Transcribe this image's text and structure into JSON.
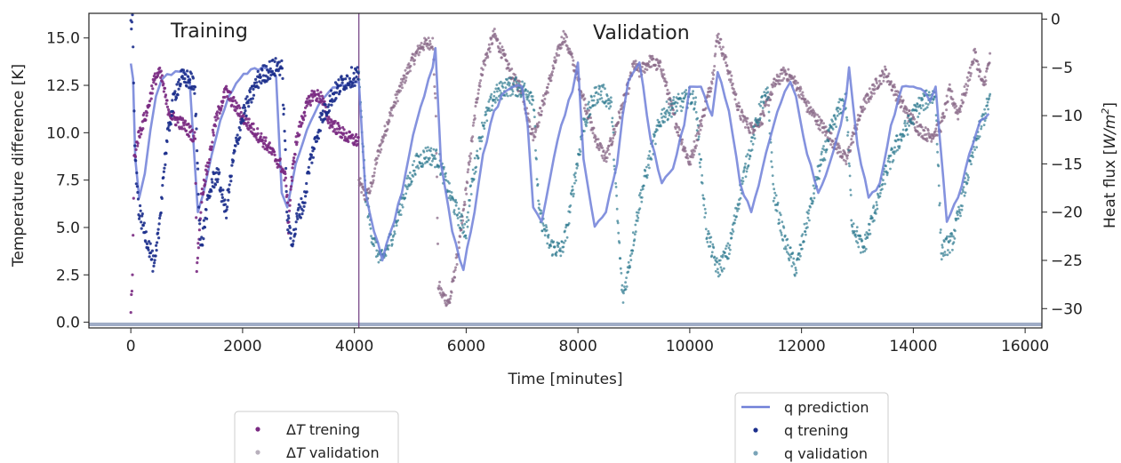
{
  "chart_data": {
    "type": "scatter",
    "xlabel": "Time [minutes]",
    "ylabel_left": "Temperature difference [K]",
    "ylabel_right_parts": [
      "Heat flux [",
      "W/m",
      "2",
      "]"
    ],
    "xlim": [
      -750,
      16300
    ],
    "ylim_left": [
      -0.3,
      16.3
    ],
    "ylim_right": [
      -32.0,
      0.6
    ],
    "xticks": [
      0,
      2000,
      4000,
      6000,
      8000,
      10000,
      12000,
      14000,
      16000
    ],
    "yticks_left": [
      "0.0",
      "2.5",
      "5.0",
      "7.5",
      "10.0",
      "12.5",
      "15.0"
    ],
    "yticks_right": [
      "0",
      "−5",
      "−10",
      "−15",
      "−20",
      "−25",
      "−30"
    ],
    "split_x": 4080,
    "region_labels": {
      "training": "Training",
      "validation": "Validation"
    },
    "colors": {
      "dt_train": "#7a2a82",
      "dt_val": "#8a6a88",
      "q_pred": "#6f7fd8",
      "q_train": "#1c2f8c",
      "q_val": "#2f7a90",
      "split_line": "#7a4a8a"
    },
    "legend_left": [
      {
        "label_prefix": "Δ",
        "label_italic": "T",
        "label_suffix": " trening",
        "marker": "dot",
        "color": "#7a2a82"
      },
      {
        "label_prefix": "Δ",
        "label_italic": "T",
        "label_suffix": " validation",
        "marker": "dot",
        "color": "#b8b0bc"
      }
    ],
    "legend_right": [
      {
        "label": "q prediction",
        "marker": "line",
        "color": "#7080d8"
      },
      {
        "label": "q trening",
        "marker": "dot",
        "color": "#1c2f8c"
      },
      {
        "label": "q validation",
        "marker": "dot",
        "color": "#7aa4b8"
      }
    ],
    "series": [
      {
        "name": "ΔT trening",
        "axis": "left",
        "x": [
          0,
          30,
          60,
          120,
          200,
          300,
          400,
          500,
          560,
          650,
          750,
          850,
          950,
          1050,
          1150,
          1180,
          1220,
          1260,
          1300,
          1400,
          1500,
          1600,
          1700,
          1850,
          2000,
          2150,
          2300,
          2450,
          2600,
          2700,
          2780,
          2820,
          2860,
          2950,
          3100,
          3250,
          3400,
          3550,
          3700,
          3850,
          4000,
          4080
        ],
        "y": [
          0.8,
          2.4,
          8.6,
          9.6,
          10.4,
          11.2,
          12.6,
          13.2,
          12.8,
          11.4,
          10.8,
          10.6,
          10.4,
          10.1,
          9.7,
          3.0,
          4.5,
          6.5,
          7.2,
          8.6,
          10.4,
          11.4,
          12.2,
          11.5,
          10.8,
          10.3,
          9.8,
          9.3,
          8.6,
          8.2,
          7.4,
          5.0,
          7.0,
          9.4,
          11.1,
          12.0,
          11.9,
          10.6,
          10.2,
          9.8,
          9.6,
          9.6
        ]
      },
      {
        "name": "ΔT validation",
        "axis": "left",
        "x": [
          4080,
          4200,
          4300,
          4400,
          4600,
          4800,
          5000,
          5200,
          5400,
          5460,
          5500,
          5560,
          5700,
          5900,
          6100,
          6200,
          6300,
          6500,
          6700,
          6850,
          7000,
          7100,
          7200,
          7400,
          7600,
          7750,
          7900,
          8100,
          8300,
          8500,
          8700,
          8900,
          9000,
          9100,
          9300,
          9500,
          9700,
          9900,
          10000,
          10200,
          10400,
          10500,
          10700,
          10900,
          11100,
          11300,
          11500,
          11700,
          11900,
          12100,
          12300,
          12500,
          12700,
          12800,
          12900,
          13100,
          13300,
          13500,
          13700,
          13900,
          14100,
          14300,
          14500,
          14650,
          14800,
          14950,
          15100,
          15250,
          15380
        ],
        "y": [
          7.4,
          6.6,
          7.1,
          8.6,
          10.6,
          12.2,
          13.6,
          14.6,
          14.8,
          11.0,
          2.0,
          1.5,
          1.0,
          4.5,
          9.5,
          12.0,
          13.5,
          15.2,
          13.8,
          12.8,
          12.3,
          10.8,
          9.8,
          11.8,
          13.8,
          15.2,
          13.8,
          11.8,
          9.8,
          8.6,
          10.5,
          12.4,
          13.6,
          13.2,
          13.8,
          13.4,
          11.0,
          9.2,
          8.4,
          10.5,
          12.8,
          15.2,
          13.2,
          11.0,
          10.2,
          10.8,
          12.5,
          13.2,
          12.6,
          11.4,
          10.6,
          9.8,
          9.0,
          8.5,
          9.6,
          11.4,
          12.4,
          13.2,
          12.0,
          11.0,
          10.2,
          9.8,
          10.4,
          12.2,
          11.0,
          12.4,
          14.2,
          12.4,
          14.0
        ]
      },
      {
        "name": "q prediction",
        "axis": "right",
        "x": [
          0,
          40,
          80,
          150,
          250,
          350,
          450,
          550,
          650,
          800,
          950,
          1050,
          1150,
          1200,
          1300,
          1450,
          1600,
          1750,
          1950,
          2150,
          2350,
          2500,
          2600,
          2700,
          2800,
          2950,
          3150,
          3350,
          3550,
          3750,
          3950,
          4080,
          4200,
          4350,
          4500,
          4650,
          4850,
          5050,
          5250,
          5400,
          5450,
          5550,
          5750,
          5950,
          6150,
          6300,
          6500,
          6700,
          6850,
          7000,
          7100,
          7200,
          7350,
          7500,
          7700,
          7900,
          8000,
          8100,
          8300,
          8500,
          8700,
          8800,
          8900,
          9100,
          9300,
          9500,
          9700,
          9900,
          10000,
          10200,
          10400,
          10500,
          10700,
          10900,
          11100,
          11300,
          11500,
          11700,
          11800,
          11900,
          12100,
          12300,
          12500,
          12700,
          12800,
          12850,
          13000,
          13200,
          13400,
          13600,
          13800,
          14000,
          14200,
          14300,
          14400,
          14600,
          14800,
          15000,
          15200,
          15350
        ],
        "y": [
          -4.6,
          -6.2,
          -14.5,
          -18.5,
          -16.0,
          -11.5,
          -8.0,
          -6.3,
          -5.7,
          -5.4,
          -5.4,
          -6.2,
          -15.5,
          -20.0,
          -18.0,
          -14.0,
          -10.5,
          -8.0,
          -6.2,
          -5.2,
          -5.0,
          -5.4,
          -6.0,
          -18.0,
          -19.5,
          -15.0,
          -11.5,
          -9.0,
          -7.5,
          -6.8,
          -6.5,
          -6.5,
          -18.0,
          -22.0,
          -25.0,
          -22.0,
          -18.0,
          -12.0,
          -8.0,
          -5.0,
          -3.0,
          -15.0,
          -22.0,
          -26.0,
          -20.0,
          -14.0,
          -9.5,
          -7.5,
          -7.0,
          -7.0,
          -11.0,
          -19.5,
          -21.0,
          -16.5,
          -11.0,
          -7.5,
          -4.5,
          -14.5,
          -21.5,
          -20.0,
          -15.0,
          -10.0,
          -6.5,
          -4.5,
          -12.5,
          -17.0,
          -15.5,
          -11.0,
          -7.0,
          -7.0,
          -10.0,
          -5.5,
          -9.5,
          -17.0,
          -20.0,
          -15.5,
          -11.0,
          -7.5,
          -6.5,
          -8.0,
          -14.0,
          -18.0,
          -15.0,
          -11.0,
          -8.0,
          -5.0,
          -13.0,
          -18.5,
          -17.0,
          -11.0,
          -7.0,
          -7.0,
          -7.5,
          -8.5,
          -7.0,
          -21.0,
          -18.5,
          -14.0,
          -10.5,
          -9.8
        ]
      },
      {
        "name": "q trening",
        "axis": "right",
        "x": [
          0,
          30,
          50,
          80,
          150,
          250,
          350,
          420,
          500,
          600,
          700,
          800,
          900,
          1000,
          1100,
          1150,
          1250,
          1350,
          1450,
          1550,
          1700,
          1850,
          2000,
          2150,
          2300,
          2400,
          2500,
          2600,
          2650,
          2700,
          2750,
          2800,
          2900,
          3000,
          3100,
          3200,
          3400,
          3600,
          3800,
          3950,
          4080
        ],
        "y": [
          -0.3,
          -0.5,
          -7.0,
          -15.0,
          -20.0,
          -22.0,
          -24.0,
          -26.0,
          -22.0,
          -15.0,
          -10.5,
          -7.5,
          -6.2,
          -6.2,
          -6.5,
          -7.8,
          -24.0,
          -20.0,
          -17.0,
          -16.0,
          -20.0,
          -14.0,
          -10.0,
          -8.0,
          -6.0,
          -5.6,
          -5.2,
          -5.0,
          -4.8,
          -5.0,
          -11.0,
          -21.0,
          -23.0,
          -20.0,
          -19.0,
          -15.0,
          -10.5,
          -8.0,
          -6.5,
          -6.0,
          -5.8
        ]
      },
      {
        "name": "q validation",
        "axis": "right",
        "x": [
          4080,
          4200,
          4300,
          4400,
          4500,
          4700,
          4900,
          5100,
          5300,
          5500,
          5700,
          5900,
          6000,
          6100,
          6300,
          6500,
          6700,
          6900,
          7100,
          7200,
          7300,
          7500,
          7700,
          7800,
          7900,
          8100,
          8300,
          8400,
          8500,
          8600,
          8700,
          8800,
          8900,
          9100,
          9300,
          9500,
          9700,
          9900,
          10000,
          10100,
          10300,
          10500,
          10700,
          10900,
          11100,
          11300,
          11400,
          11500,
          11700,
          11900,
          12100,
          12300,
          12500,
          12700,
          12800,
          12900,
          13100,
          13300,
          13500,
          13700,
          13900,
          14100,
          14300,
          14400,
          14500,
          14700,
          14900,
          15100,
          15300,
          15380
        ],
        "y": [
          -6.0,
          -18.0,
          -22.0,
          -24.0,
          -25.0,
          -22.0,
          -18.0,
          -15.0,
          -14.0,
          -14.5,
          -18.0,
          -21.0,
          -22.0,
          -17.0,
          -11.0,
          -8.0,
          -7.0,
          -7.0,
          -7.5,
          -8.0,
          -20.0,
          -23.5,
          -24.0,
          -22.0,
          -18.0,
          -11.0,
          -8.0,
          -7.5,
          -8.0,
          -9.0,
          -20.0,
          -29.0,
          -26.0,
          -19.0,
          -14.0,
          -10.0,
          -9.0,
          -8.5,
          -8.0,
          -8.5,
          -22.0,
          -26.0,
          -24.0,
          -18.0,
          -13.0,
          -8.5,
          -8.0,
          -18.0,
          -23.0,
          -26.0,
          -21.0,
          -16.0,
          -12.0,
          -9.0,
          -8.5,
          -21.0,
          -24.0,
          -20.0,
          -16.0,
          -13.0,
          -11.0,
          -9.0,
          -8.0,
          -8.0,
          -24.0,
          -23.0,
          -18.0,
          -13.0,
          -9.5,
          -8.0
        ]
      }
    ]
  }
}
